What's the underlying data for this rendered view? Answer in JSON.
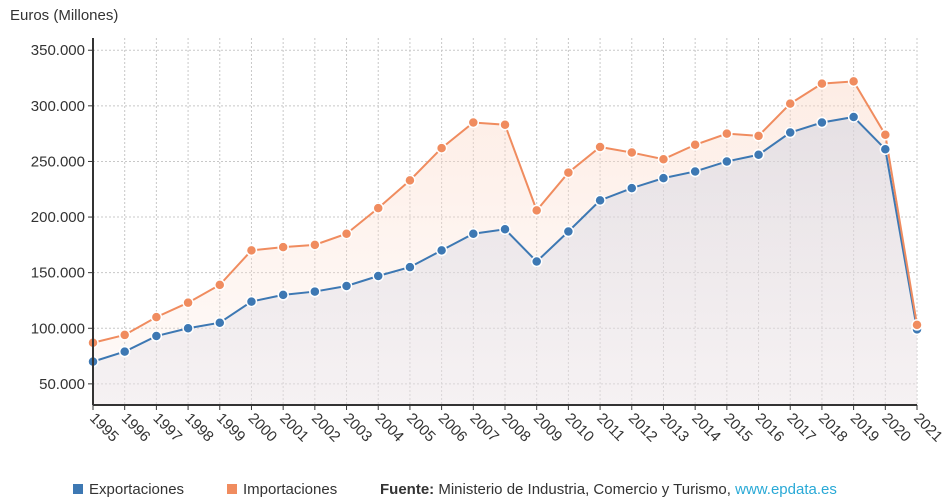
{
  "chart_data": {
    "type": "line",
    "y_axis_title": "Euros (Millones)",
    "categories": [
      "1995",
      "1996",
      "1997",
      "1998",
      "1999",
      "2000",
      "2001",
      "2002",
      "2003",
      "2004",
      "2005",
      "2006",
      "2007",
      "2008",
      "2009",
      "2010",
      "2011",
      "2012",
      "2013",
      "2014",
      "2015",
      "2016",
      "2017",
      "2018",
      "2019",
      "2020",
      "2021"
    ],
    "series": [
      {
        "name": "Exportaciones",
        "color": "#3d78b3",
        "values": [
          70000,
          79000,
          93000,
          100000,
          105000,
          124000,
          130000,
          133000,
          138000,
          147000,
          155000,
          170000,
          185000,
          189000,
          160000,
          187000,
          215000,
          226000,
          235000,
          241000,
          250000,
          256000,
          276000,
          285000,
          290000,
          261000,
          99000
        ]
      },
      {
        "name": "Importaciones",
        "color": "#f08c5f",
        "values": [
          87000,
          94000,
          110000,
          123000,
          139000,
          170000,
          173000,
          175000,
          185000,
          208000,
          233000,
          262000,
          285000,
          283000,
          206000,
          240000,
          263000,
          258000,
          252000,
          265000,
          275000,
          273000,
          302000,
          320000,
          322000,
          274000,
          103000
        ]
      }
    ],
    "ylim": [
      31000,
      361000
    ],
    "yticks": [
      {
        "value": 50000,
        "label": "50.000"
      },
      {
        "value": 100000,
        "label": "100.000"
      },
      {
        "value": 150000,
        "label": "150.000"
      },
      {
        "value": 200000,
        "label": "200.000"
      },
      {
        "value": 250000,
        "label": "250.000"
      },
      {
        "value": 300000,
        "label": "300.000"
      },
      {
        "value": 350000,
        "label": "350.000"
      }
    ],
    "grid": true,
    "legend": "bottom",
    "source_label": "Fuente:",
    "source": "Ministerio de Industria, Comercio y Turismo,",
    "source_link": "www.epdata.es"
  }
}
